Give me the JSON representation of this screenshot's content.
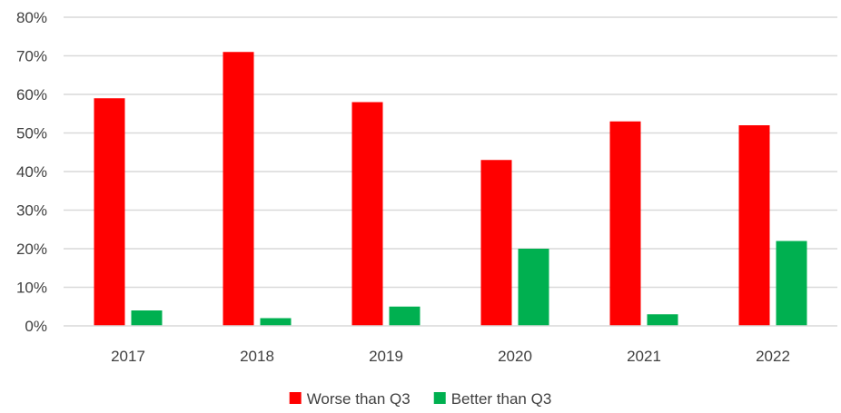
{
  "chart_data": {
    "type": "bar",
    "title": "",
    "xlabel": "",
    "ylabel": "",
    "categories": [
      "2017",
      "2018",
      "2019",
      "2020",
      "2021",
      "2022"
    ],
    "series": [
      {
        "name": "Worse than Q3",
        "color": "#ff0000",
        "values": [
          59,
          71,
          58,
          43,
          53,
          52
        ]
      },
      {
        "name": "Better than Q3",
        "color": "#00b050",
        "values": [
          4,
          2,
          5,
          20,
          3,
          22
        ]
      }
    ],
    "ylim": [
      0,
      80
    ],
    "y_ticks": [
      0,
      10,
      20,
      30,
      40,
      50,
      60,
      70,
      80
    ],
    "y_tick_labels": [
      "0%",
      "10%",
      "20%",
      "30%",
      "40%",
      "50%",
      "60%",
      "70%",
      "80%"
    ],
    "value_suffix": "%",
    "grid": true,
    "grid_color": "#d9d9d9",
    "text_color": "#404040",
    "legend_position": "bottom"
  }
}
